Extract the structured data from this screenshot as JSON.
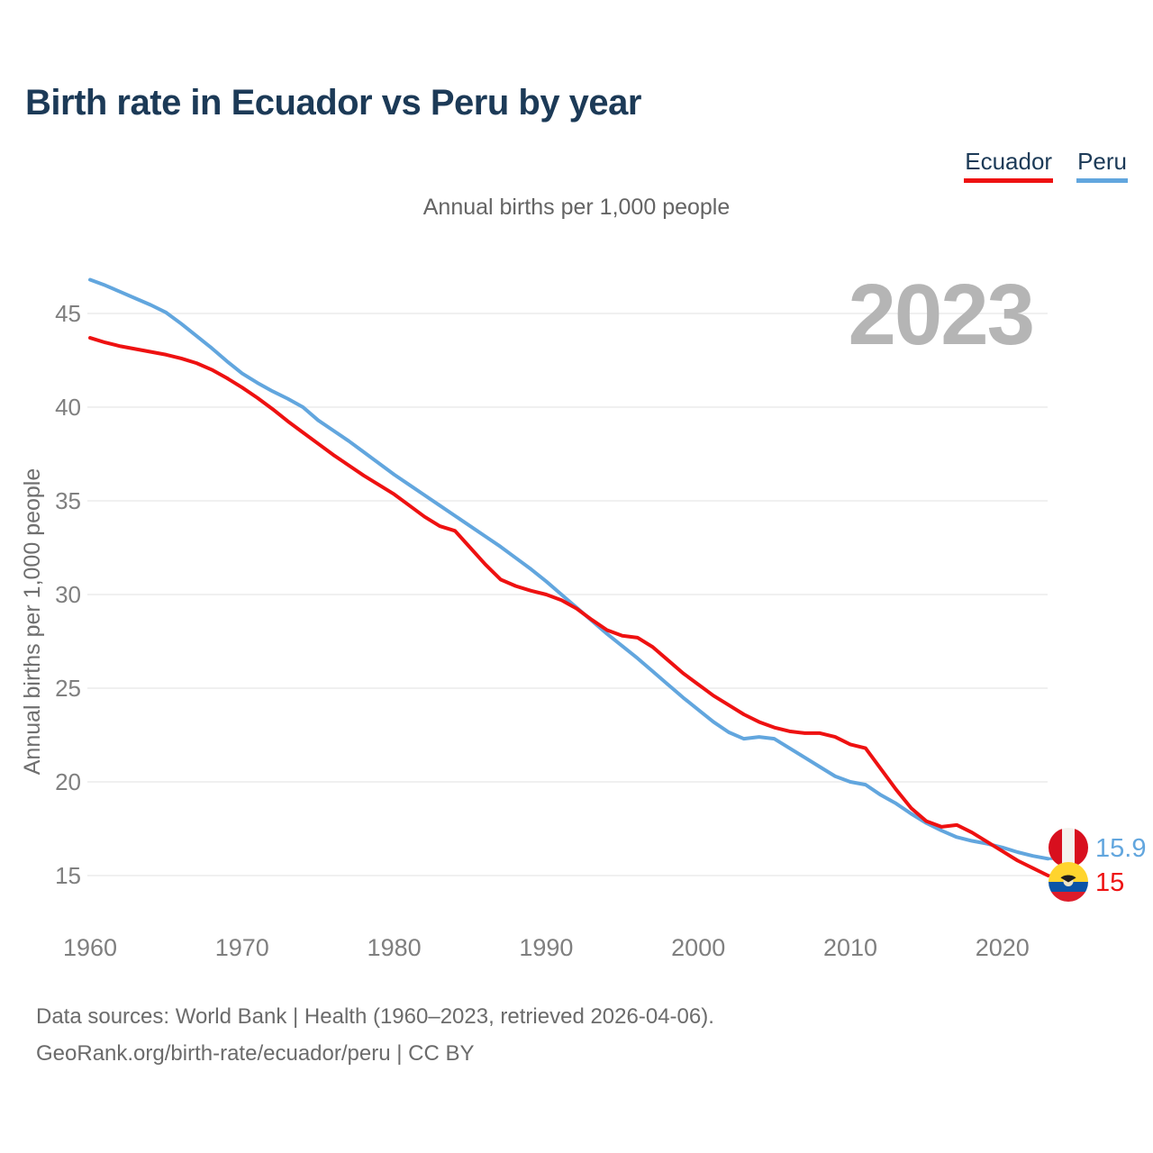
{
  "title": "Birth rate in Ecuador vs Peru by year",
  "subtitle": "Annual births per 1,000 people",
  "watermark": "2023",
  "legend": {
    "items": [
      {
        "label": "Ecuador",
        "color": "#ee1111"
      },
      {
        "label": "Peru",
        "color": "#62a6de"
      }
    ]
  },
  "y_axis": {
    "title": "Annual births per 1,000 people"
  },
  "end_labels": {
    "peru": {
      "value": "15.9",
      "icon": "peru-flag-icon",
      "color": "#62a6de"
    },
    "ecuador": {
      "value": "15",
      "icon": "ecuador-flag-icon",
      "color": "#ee1111"
    }
  },
  "footer": {
    "line1": "Data sources: World Bank | Health (1960–2023, retrieved 2026-04-06).",
    "line2": "GeoRank.org/birth-rate/ecuador/peru | CC BY"
  },
  "chart_data": {
    "type": "line",
    "title": "Birth rate in Ecuador vs Peru by year",
    "subtitle": "Annual births per 1,000 people",
    "ylabel": "Annual births per 1,000 people",
    "xlabel": "",
    "xlim": [
      1960,
      2023
    ],
    "ylim": [
      13,
      48
    ],
    "y_ticks": [
      15,
      20,
      25,
      30,
      35,
      40,
      45
    ],
    "x_ticks": [
      1960,
      1970,
      1980,
      1990,
      2000,
      2010,
      2020
    ],
    "grid": "horizontal",
    "legend_position": "top-right",
    "x": [
      1960,
      1961,
      1962,
      1963,
      1964,
      1965,
      1966,
      1967,
      1968,
      1969,
      1970,
      1971,
      1972,
      1973,
      1974,
      1975,
      1976,
      1977,
      1978,
      1979,
      1980,
      1981,
      1982,
      1983,
      1984,
      1985,
      1986,
      1987,
      1988,
      1989,
      1990,
      1991,
      1992,
      1993,
      1994,
      1995,
      1996,
      1997,
      1998,
      1999,
      2000,
      2001,
      2002,
      2003,
      2004,
      2005,
      2006,
      2007,
      2008,
      2009,
      2010,
      2011,
      2012,
      2013,
      2014,
      2015,
      2016,
      2017,
      2018,
      2019,
      2020,
      2021,
      2022,
      2023
    ],
    "series": [
      {
        "name": "Ecuador",
        "color": "#ee1111",
        "end_value": 15,
        "values": [
          43.7,
          43.45,
          43.25,
          43.1,
          42.95,
          42.8,
          42.6,
          42.35,
          42.0,
          41.55,
          41.05,
          40.5,
          39.9,
          39.25,
          38.65,
          38.05,
          37.45,
          36.9,
          36.35,
          35.85,
          35.35,
          34.75,
          34.15,
          33.65,
          33.4,
          32.5,
          31.6,
          30.8,
          30.45,
          30.2,
          30.0,
          29.7,
          29.25,
          28.65,
          28.1,
          27.8,
          27.7,
          27.2,
          26.5,
          25.8,
          25.2,
          24.6,
          24.1,
          23.6,
          23.2,
          22.9,
          22.7,
          22.6,
          22.6,
          22.4,
          22.0,
          21.8,
          20.7,
          19.6,
          18.6,
          17.9,
          17.6,
          17.7,
          17.3,
          16.8,
          16.3,
          15.8,
          15.4,
          15.0
        ]
      },
      {
        "name": "Peru",
        "color": "#62a6de",
        "end_value": 15.9,
        "values": [
          46.8,
          46.5,
          46.15,
          45.8,
          45.45,
          45.05,
          44.45,
          43.8,
          43.15,
          42.45,
          41.8,
          41.3,
          40.85,
          40.45,
          40.0,
          39.3,
          38.75,
          38.2,
          37.6,
          37.0,
          36.4,
          35.85,
          35.3,
          34.75,
          34.2,
          33.65,
          33.1,
          32.55,
          31.95,
          31.35,
          30.7,
          30.0,
          29.3,
          28.6,
          27.9,
          27.25,
          26.6,
          25.9,
          25.2,
          24.5,
          23.85,
          23.2,
          22.65,
          22.3,
          22.4,
          22.3,
          21.8,
          21.3,
          20.8,
          20.3,
          20.0,
          19.85,
          19.3,
          18.85,
          18.3,
          17.8,
          17.4,
          17.05,
          16.85,
          16.7,
          16.5,
          16.25,
          16.05,
          15.9
        ]
      }
    ]
  }
}
